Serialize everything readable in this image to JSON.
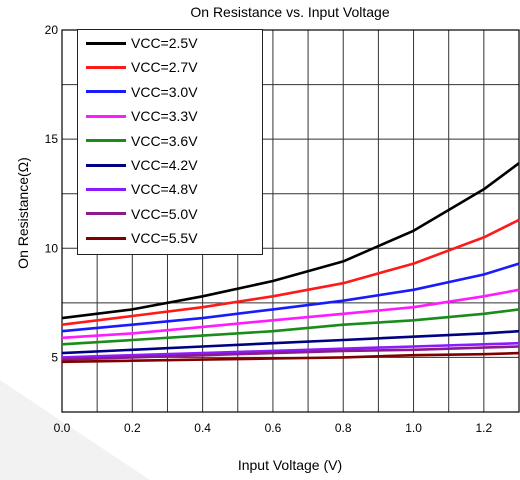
{
  "chart_data": {
    "type": "line",
    "title": "On  Resistance  vs.  Input  Voltage",
    "xlabel": "Input Voltage (V)",
    "ylabel": "On  Resistance(Ω)",
    "xlim": [
      0.0,
      1.3
    ],
    "ylim": [
      2.5,
      20
    ],
    "x_ticks": [
      "0.0",
      "0.2",
      "0.4",
      "0.6",
      "0.8",
      "1.0",
      "1.2"
    ],
    "y_ticks": [
      "5",
      "10",
      "15",
      "20"
    ],
    "grid": true,
    "legend_position": "top-left",
    "x": [
      0.0,
      0.2,
      0.4,
      0.6,
      0.8,
      1.0,
      1.2,
      1.3
    ],
    "series": [
      {
        "name": "VCC=2.5V",
        "color": "#000000",
        "values": [
          6.8,
          7.2,
          7.8,
          8.5,
          9.4,
          10.8,
          12.7,
          13.9
        ]
      },
      {
        "name": "VCC=2.7V",
        "color": "#ff1a1a",
        "values": [
          6.5,
          6.9,
          7.3,
          7.8,
          8.4,
          9.3,
          10.5,
          11.3
        ]
      },
      {
        "name": "VCC=3.0V",
        "color": "#1a1aff",
        "values": [
          6.2,
          6.5,
          6.8,
          7.2,
          7.6,
          8.1,
          8.8,
          9.3
        ]
      },
      {
        "name": "VCC=3.3V",
        "color": "#ff1aff",
        "values": [
          5.9,
          6.1,
          6.4,
          6.7,
          7.0,
          7.3,
          7.8,
          8.1
        ]
      },
      {
        "name": "VCC=3.6V",
        "color": "#1a8c1a",
        "values": [
          5.6,
          5.8,
          6.0,
          6.2,
          6.5,
          6.7,
          7.0,
          7.2
        ]
      },
      {
        "name": "VCC=4.2V",
        "color": "#000080",
        "values": [
          5.2,
          5.35,
          5.5,
          5.65,
          5.8,
          5.95,
          6.1,
          6.2
        ]
      },
      {
        "name": "VCC=4.8V",
        "color": "#8c1aff",
        "values": [
          5.0,
          5.1,
          5.2,
          5.3,
          5.4,
          5.5,
          5.6,
          5.65
        ]
      },
      {
        "name": "VCC=5.0V",
        "color": "#8c1a8c",
        "values": [
          4.9,
          5.0,
          5.1,
          5.2,
          5.3,
          5.35,
          5.45,
          5.5
        ]
      },
      {
        "name": "VCC=5.5V",
        "color": "#800000",
        "values": [
          4.8,
          4.85,
          4.9,
          4.95,
          5.0,
          5.1,
          5.15,
          5.2
        ]
      }
    ]
  }
}
